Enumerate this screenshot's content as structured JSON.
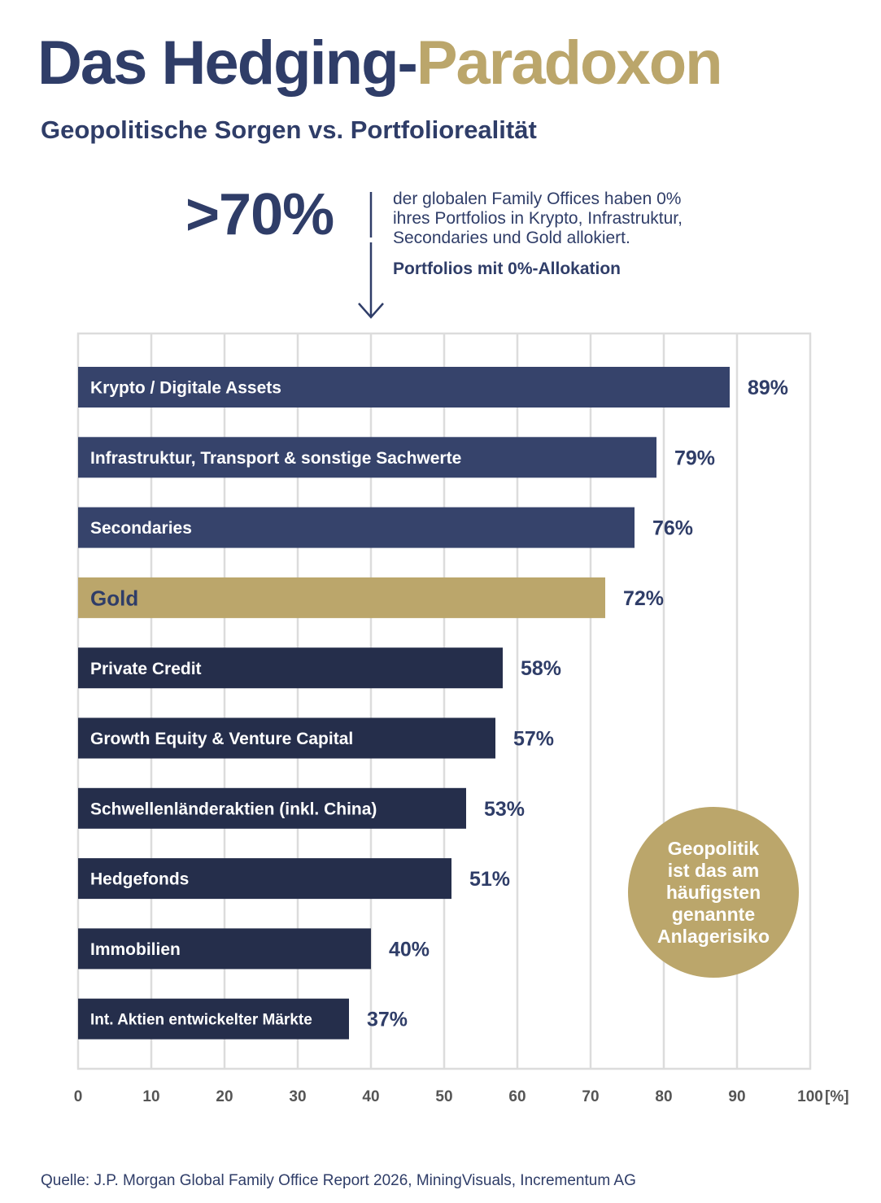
{
  "header": {
    "title_main": "Das Hedging-",
    "title_accent": "Paradoxon",
    "subtitle": "Geopolitische Sorgen vs. Portfoliorealität"
  },
  "callout": {
    "big_value": ">70%",
    "text_lines": [
      "der globalen Family Offices haben 0%",
      "ihres Portfolios in Krypto, Infrastruktur,",
      "Secondaries und Gold allokiert."
    ],
    "caption": "Portfolios mit 0%-Allokation"
  },
  "badge": {
    "lines": [
      "Geopolitik",
      "ist das am",
      "häufigsten",
      "genannte",
      "Anlagerisiko"
    ]
  },
  "source": "Quelle: J.P. Morgan Global Family Office Report 2026, MiningVisuals, Incrementum AG",
  "colors": {
    "navy_light": "#36436b",
    "navy_dark": "#252e4b",
    "gold": "#bba66b",
    "text": "#2f3d68",
    "grid": "#dcdcdc",
    "axis_text": "#555555"
  },
  "chart_data": {
    "type": "bar",
    "orientation": "horizontal",
    "title": "Portfolios mit 0%-Allokation",
    "xlabel": "",
    "ylabel": "",
    "xlim": [
      0,
      100
    ],
    "x_ticks": [
      0,
      10,
      20,
      30,
      40,
      50,
      60,
      70,
      80,
      90,
      100
    ],
    "x_unit_label": "[%]",
    "grid": true,
    "categories": [
      "Krypto / Digitale Assets",
      "Infrastruktur, Transport & sonstige Sachwerte",
      "Secondaries",
      "Gold",
      "Private Credit",
      "Growth Equity & Venture Capital",
      "Schwellenländeraktien (inkl. China)",
      "Hedgefonds",
      "Immobilien",
      "Int. Aktien entwickelter Märkte"
    ],
    "values": [
      89,
      79,
      76,
      72,
      58,
      57,
      53,
      51,
      40,
      37
    ],
    "value_labels": [
      "89%",
      "79%",
      "76%",
      "72%",
      "58%",
      "57%",
      "53%",
      "51%",
      "40%",
      "37%"
    ],
    "bar_colors": [
      "#36436b",
      "#36436b",
      "#36436b",
      "#bba66b",
      "#252e4b",
      "#252e4b",
      "#252e4b",
      "#252e4b",
      "#252e4b",
      "#252e4b"
    ],
    "label_colors": [
      "#ffffff",
      "#ffffff",
      "#ffffff",
      "#2f3d68",
      "#ffffff",
      "#ffffff",
      "#ffffff",
      "#ffffff",
      "#ffffff",
      "#ffffff"
    ]
  }
}
